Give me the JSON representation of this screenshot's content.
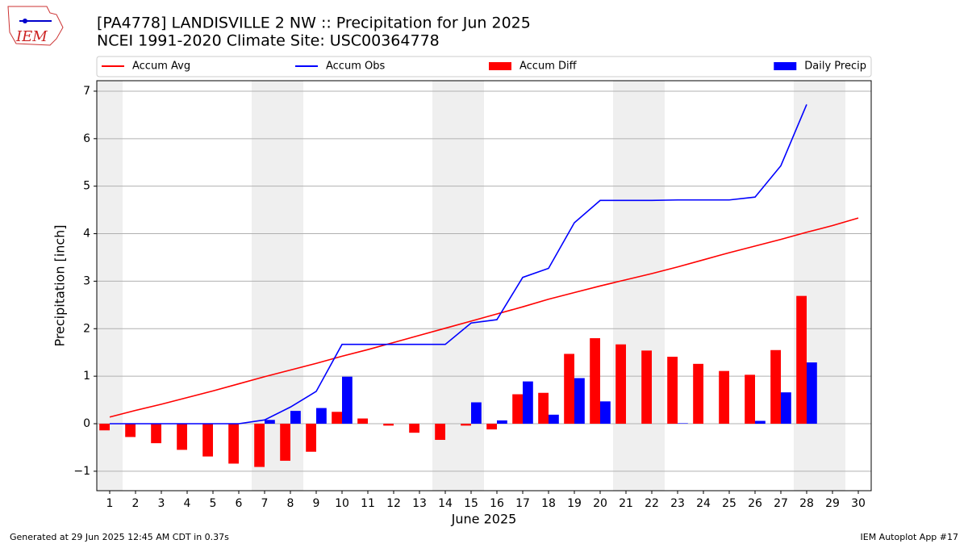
{
  "logo_text": "IEM",
  "footer_left": "Generated at 29 Jun 2025 12:45 AM CDT in 0.37s",
  "footer_right": "IEM Autoplot App #17",
  "chart_data": {
    "type": "bar",
    "title": "[PA4778] LANDISVILLE 2 NW :: Precipitation for Jun 2025",
    "subtitle": "NCEI 1991-2020 Climate Site: USC00364778",
    "x_label": "June 2025",
    "y_label": "Precipitation [inch]",
    "x": [
      1,
      2,
      3,
      4,
      5,
      6,
      7,
      8,
      9,
      10,
      11,
      12,
      13,
      14,
      15,
      16,
      17,
      18,
      19,
      20,
      21,
      22,
      23,
      24,
      25,
      26,
      27,
      28,
      29,
      30
    ],
    "xlim": [
      0.5,
      30.5
    ],
    "xticks": [
      1,
      2,
      3,
      4,
      5,
      6,
      7,
      8,
      9,
      10,
      11,
      12,
      13,
      14,
      15,
      16,
      17,
      18,
      19,
      20,
      21,
      22,
      23,
      24,
      25,
      26,
      27,
      28,
      29,
      30
    ],
    "ylim": [
      -1.41,
      7.22
    ],
    "yticks": [
      {
        "value": -1,
        "label": "−1"
      },
      0,
      1,
      2,
      3,
      4,
      5,
      6,
      7
    ],
    "grid": true,
    "legend": "top",
    "series": [
      {
        "name": "Accum Avg",
        "type": "line",
        "color": "#ff0000",
        "values": [
          0.14,
          0.28,
          0.41,
          0.55,
          0.69,
          0.84,
          0.99,
          1.13,
          1.27,
          1.42,
          1.56,
          1.71,
          1.86,
          2.01,
          2.16,
          2.31,
          2.46,
          2.62,
          2.76,
          2.9,
          3.03,
          3.16,
          3.3,
          3.45,
          3.6,
          3.74,
          3.88,
          4.03,
          4.17,
          4.33
        ]
      },
      {
        "name": "Accum Obs",
        "type": "line",
        "color": "#0000ff",
        "values": [
          0,
          0,
          0,
          0,
          0,
          0,
          0.08,
          0.35,
          0.68,
          1.67,
          1.67,
          1.67,
          1.67,
          1.67,
          2.12,
          2.19,
          3.08,
          3.27,
          4.23,
          4.7,
          4.7,
          4.7,
          4.71,
          4.71,
          4.71,
          4.77,
          5.43,
          6.72,
          null,
          null
        ]
      },
      {
        "name": "Accum Diff",
        "type": "bar",
        "color": "#ff0000",
        "values": [
          -0.14,
          -0.28,
          -0.41,
          -0.55,
          -0.69,
          -0.84,
          -0.91,
          -0.78,
          -0.59,
          0.25,
          0.11,
          -0.04,
          -0.19,
          -0.34,
          -0.04,
          -0.12,
          0.62,
          0.65,
          1.47,
          1.8,
          1.67,
          1.54,
          1.41,
          1.26,
          1.11,
          1.03,
          1.55,
          2.69,
          null,
          null
        ]
      },
      {
        "name": "Daily Precip",
        "type": "bar",
        "color": "#0000ff",
        "values": [
          0,
          0,
          0,
          0,
          0,
          0,
          0.08,
          0.27,
          0.33,
          0.99,
          0,
          0,
          0,
          0,
          0.45,
          0.07,
          0.89,
          0.19,
          0.96,
          0.47,
          0,
          0,
          0.01,
          0,
          0,
          0.06,
          0.66,
          1.29,
          null,
          null
        ]
      }
    ]
  }
}
